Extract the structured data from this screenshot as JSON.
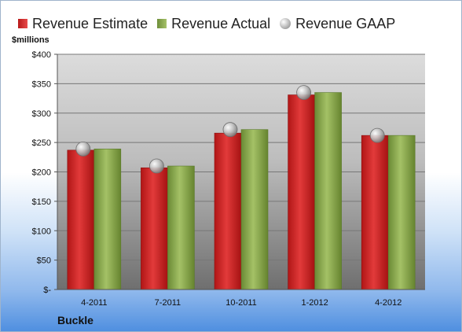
{
  "company": "Buckle",
  "unit_label": "$millions",
  "legend": {
    "estimate": "Revenue Estimate",
    "actual": "Revenue Actual",
    "gaap": "Revenue GAAP"
  },
  "colors": {
    "estimate": "#cf2a2a",
    "actual": "#8faf52",
    "gaap": "#a9a9a9"
  },
  "chart_data": {
    "type": "bar",
    "categories": [
      "4-2011",
      "7-2011",
      "10-2011",
      "1-2012",
      "4-2012"
    ],
    "series": [
      {
        "name": "Revenue Estimate",
        "values": [
          237,
          207,
          266,
          331,
          262
        ]
      },
      {
        "name": "Revenue Actual",
        "values": [
          239,
          210,
          272,
          335,
          262
        ]
      },
      {
        "name": "Revenue GAAP",
        "values": [
          239,
          210,
          272,
          335,
          262
        ]
      }
    ],
    "y_ticks": [
      0,
      50,
      100,
      150,
      200,
      250,
      300,
      350,
      400
    ],
    "y_tick_labels": [
      "$-",
      "$50",
      "$100",
      "$150",
      "$200",
      "$250",
      "$300",
      "$350",
      "$400"
    ],
    "ylim": [
      0,
      400
    ],
    "ylabel": "$millions",
    "xlabel": "",
    "grid": true,
    "legend_position": "top"
  }
}
